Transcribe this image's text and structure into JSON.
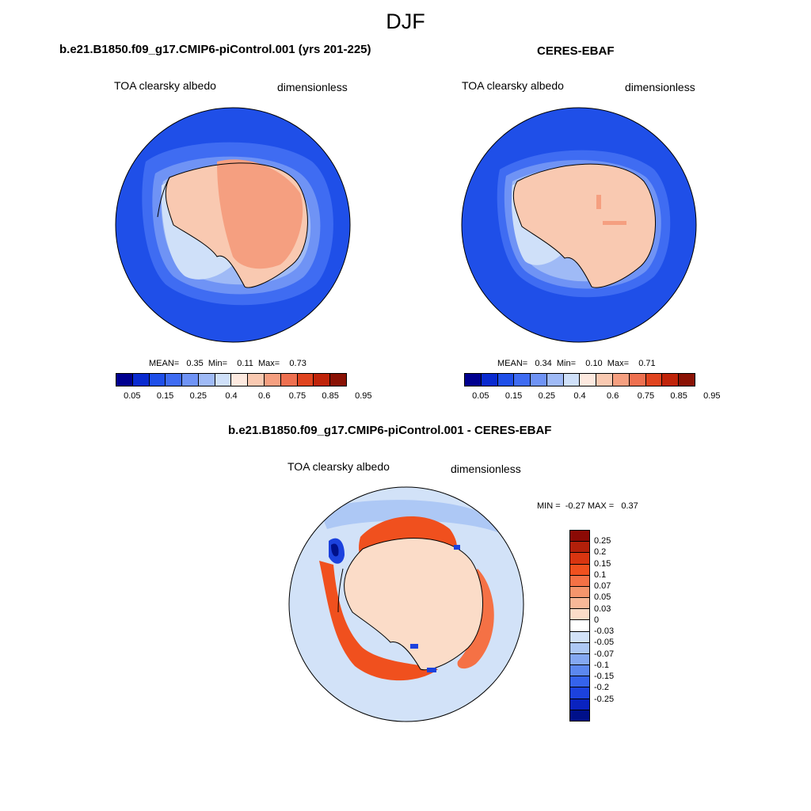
{
  "title": "DJF",
  "panels": {
    "model": {
      "title": "b.e21.B1850.f09_g17.CMIP6-piControl.001 (yrs 201-225)",
      "variable": "TOA clearsky albedo",
      "units": "dimensionless",
      "stats": "MEAN=   0.35  Min=    0.11  Max=    0.73"
    },
    "obs": {
      "title": "CERES-EBAF",
      "variable": "TOA clearsky albedo",
      "units": "dimensionless",
      "stats": "MEAN=   0.34  Min=    0.10  Max=    0.71"
    },
    "diff": {
      "title": "b.e21.B1850.f09_g17.CMIP6-piControl.001 - CERES-EBAF",
      "variable": "TOA clearsky albedo",
      "units": "dimensionless",
      "stats": "MIN =  -0.27 MAX =   0.37"
    }
  },
  "colorbar_abs": {
    "colors": [
      "#00008f",
      "#0a2bd0",
      "#1f4fe8",
      "#3f6cf2",
      "#6f93f5",
      "#9fbaf6",
      "#cfe0f9",
      "#fde9df",
      "#f9c9b1",
      "#f59f80",
      "#ee7050",
      "#e0441f",
      "#c0240a",
      "#8a1205"
    ],
    "labels": [
      "0.05",
      "0.15",
      "0.25",
      "0.4",
      "0.6",
      "0.75",
      "0.85",
      "0.95"
    ]
  },
  "colorbar_diff": {
    "colors": [
      "#8b0a05",
      "#b3200a",
      "#d93510",
      "#f0501e",
      "#f57145",
      "#f5956c",
      "#f8b898",
      "#fbdcc8",
      "#ffffff",
      "#d2e2f8",
      "#adc8f5",
      "#84a8f2",
      "#5c88ef",
      "#3563ec",
      "#1c42de",
      "#0a23bf",
      "#00108a"
    ],
    "labels": [
      "0.25",
      "0.2",
      "0.15",
      "0.1",
      "0.07",
      "0.05",
      "0.03",
      "0",
      "-0.03",
      "-0.05",
      "-0.07",
      "-0.1",
      "-0.15",
      "-0.2",
      "-0.25"
    ]
  }
}
